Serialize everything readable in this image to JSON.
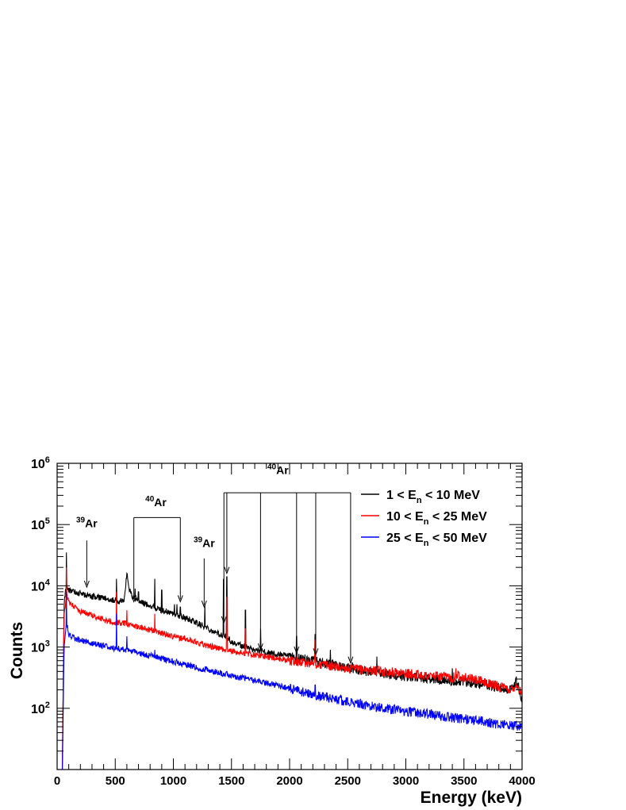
{
  "chart_data": {
    "type": "line",
    "xlabel": "Energy (keV)",
    "ylabel": "Counts",
    "xlim": [
      0,
      4000
    ],
    "ylim": [
      10,
      1000000
    ],
    "yscale": "log",
    "grid": false,
    "legend_position": "top-right",
    "x_ticks": [
      "0",
      "500",
      "1000",
      "1500",
      "2000",
      "2500",
      "3000",
      "3500",
      "4000"
    ],
    "y_ticks": [
      {
        "base": "10",
        "exp": "2"
      },
      {
        "base": "10",
        "exp": "3"
      },
      {
        "base": "10",
        "exp": "4"
      },
      {
        "base": "10",
        "exp": "5"
      },
      {
        "base": "10",
        "exp": "6"
      }
    ],
    "series": [
      {
        "name": "1 < E_n < 10 MeV",
        "legend": {
          "pre": "1 < E",
          "sub": "n",
          "post": " < 10 MeV"
        },
        "color": "#000000",
        "points": [
          [
            40,
            2
          ],
          [
            60,
            5000
          ],
          [
            80,
            11000
          ],
          [
            100,
            8500
          ],
          [
            150,
            8000
          ],
          [
            200,
            7500
          ],
          [
            250,
            7000
          ],
          [
            300,
            6800
          ],
          [
            400,
            6200
          ],
          [
            500,
            5800
          ],
          [
            520,
            5400
          ],
          [
            580,
            6000
          ],
          [
            600,
            16000
          ],
          [
            620,
            9000
          ],
          [
            650,
            6500
          ],
          [
            700,
            5500
          ],
          [
            800,
            4800
          ],
          [
            850,
            4300
          ],
          [
            900,
            4000
          ],
          [
            1000,
            3500
          ],
          [
            1100,
            3000
          ],
          [
            1200,
            2500
          ],
          [
            1300,
            2000
          ],
          [
            1400,
            1600
          ],
          [
            1460,
            1500
          ],
          [
            1500,
            1200
          ],
          [
            1700,
            900
          ],
          [
            1900,
            750
          ],
          [
            2000,
            700
          ],
          [
            2200,
            600
          ],
          [
            2500,
            450
          ],
          [
            2600,
            420
          ],
          [
            2800,
            370
          ],
          [
            3000,
            330
          ],
          [
            3200,
            300
          ],
          [
            3300,
            290
          ],
          [
            3500,
            270
          ],
          [
            3600,
            250
          ],
          [
            3700,
            240
          ],
          [
            3800,
            220
          ],
          [
            3900,
            200
          ],
          [
            3950,
            280
          ],
          [
            4000,
            140
          ]
        ],
        "peaks": [
          [
            80,
            35000
          ],
          [
            510,
            13000
          ],
          [
            600,
            16000
          ],
          [
            670,
            9000
          ],
          [
            700,
            8000
          ],
          [
            840,
            13000
          ],
          [
            900,
            8500
          ],
          [
            1010,
            5000
          ],
          [
            1030,
            5000
          ],
          [
            1060,
            4500
          ],
          [
            1270,
            5000
          ],
          [
            1430,
            13000
          ],
          [
            1460,
            14000
          ],
          [
            1620,
            4000
          ],
          [
            1750,
            2000
          ],
          [
            2060,
            1500
          ],
          [
            2220,
            1600
          ],
          [
            2350,
            900
          ],
          [
            2540,
            550
          ],
          [
            2750,
            700
          ],
          [
            3400,
            450
          ],
          [
            3640,
            250
          ]
        ]
      },
      {
        "name": "10 < E_n < 25 MeV",
        "legend": {
          "pre": "10 < E",
          "sub": "n",
          "post": " < 25 MeV"
        },
        "color": "#ff0000",
        "points": [
          [
            40,
            2
          ],
          [
            60,
            3000
          ],
          [
            80,
            7000
          ],
          [
            100,
            5500
          ],
          [
            150,
            4500
          ],
          [
            200,
            3800
          ],
          [
            300,
            3300
          ],
          [
            400,
            2800
          ],
          [
            500,
            2500
          ],
          [
            600,
            2400
          ],
          [
            700,
            2100
          ],
          [
            800,
            1900
          ],
          [
            900,
            1700
          ],
          [
            1000,
            1500
          ],
          [
            1100,
            1350
          ],
          [
            1200,
            1200
          ],
          [
            1300,
            1050
          ],
          [
            1400,
            950
          ],
          [
            1500,
            850
          ],
          [
            1700,
            750
          ],
          [
            1900,
            650
          ],
          [
            2000,
            600
          ],
          [
            2200,
            540
          ],
          [
            2500,
            450
          ],
          [
            2800,
            400
          ],
          [
            3000,
            370
          ],
          [
            3200,
            340
          ],
          [
            3400,
            320
          ],
          [
            3450,
            350
          ],
          [
            3500,
            320
          ],
          [
            3600,
            290
          ],
          [
            3700,
            260
          ],
          [
            3800,
            230
          ],
          [
            3900,
            200
          ],
          [
            3950,
            240
          ],
          [
            4000,
            180
          ]
        ],
        "peaks": [
          [
            80,
            20000
          ],
          [
            510,
            8000
          ],
          [
            600,
            4000
          ],
          [
            840,
            3500
          ],
          [
            1460,
            6500
          ],
          [
            1620,
            2000
          ],
          [
            2220,
            1300
          ],
          [
            3430,
            450
          ]
        ]
      },
      {
        "name": "25 < E_n < 50 MeV",
        "legend": {
          "pre": "25 < E",
          "sub": "n",
          "post": " < 50 MeV"
        },
        "color": "#0000ff",
        "points": [
          [
            40,
            2
          ],
          [
            60,
            1000
          ],
          [
            80,
            2500
          ],
          [
            100,
            1600
          ],
          [
            150,
            1400
          ],
          [
            200,
            1300
          ],
          [
            300,
            1150
          ],
          [
            400,
            1050
          ],
          [
            500,
            950
          ],
          [
            600,
            900
          ],
          [
            700,
            800
          ],
          [
            800,
            720
          ],
          [
            900,
            650
          ],
          [
            1000,
            580
          ],
          [
            1100,
            520
          ],
          [
            1200,
            460
          ],
          [
            1300,
            420
          ],
          [
            1400,
            380
          ],
          [
            1500,
            340
          ],
          [
            1600,
            310
          ],
          [
            1800,
            260
          ],
          [
            2000,
            210
          ],
          [
            2200,
            170
          ],
          [
            2400,
            140
          ],
          [
            2600,
            120
          ],
          [
            2800,
            100
          ],
          [
            3000,
            90
          ],
          [
            3200,
            80
          ],
          [
            3400,
            70
          ],
          [
            3600,
            65
          ],
          [
            3800,
            55
          ],
          [
            4000,
            50
          ]
        ],
        "peaks": [
          [
            80,
            8000
          ],
          [
            510,
            3500
          ],
          [
            600,
            1500
          ],
          [
            840,
            900
          ],
          [
            1460,
            400
          ],
          [
            1620,
            320
          ],
          [
            2220,
            240
          ],
          [
            2380,
            150
          ]
        ]
      }
    ],
    "annotations": [
      {
        "pre": "",
        "sup": "39",
        "main": "Ar",
        "anchor": [
          255,
          90000
        ],
        "arrow_x": [
          255
        ],
        "arrow_from": 55000,
        "arrow_to": 9500
      },
      {
        "pre": "",
        "sup": "40",
        "main": "Ar",
        "anchor": [
          850,
          200000
        ],
        "bracket": [
          660,
          1060
        ],
        "bracket_y": 130000,
        "arrow_x": [
          660,
          1060
        ],
        "arrow_to": 5500
      },
      {
        "pre": "",
        "sup": "39",
        "main": "Ar",
        "anchor": [
          1265,
          43000
        ],
        "arrow_x": [
          1265
        ],
        "arrow_from": 28000,
        "arrow_to": 4500
      },
      {
        "pre": "",
        "sup": "40",
        "main": "Ar",
        "anchor": [
          1900,
          670000
        ],
        "bracket": [
          1435,
          2525
        ],
        "bracket_y": 330000,
        "arrow_x": [
          1435,
          1460,
          1750,
          2060,
          2225,
          2525
        ],
        "arrow_to_list": [
          2500,
          16000,
          900,
          800,
          750,
          550
        ]
      }
    ]
  }
}
